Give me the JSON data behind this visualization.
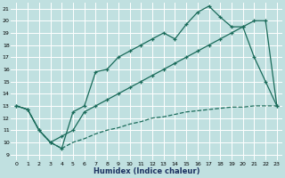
{
  "xlabel": "Humidex (Indice chaleur)",
  "bg_color": "#c0e0e0",
  "line_color": "#1a6b5a",
  "xlim": [
    -0.5,
    23.5
  ],
  "ylim": [
    8.5,
    21.5
  ],
  "xticks": [
    0,
    1,
    2,
    3,
    4,
    5,
    6,
    7,
    8,
    9,
    10,
    11,
    12,
    13,
    14,
    15,
    16,
    17,
    18,
    19,
    20,
    21,
    22,
    23
  ],
  "yticks": [
    9,
    10,
    11,
    12,
    13,
    14,
    15,
    16,
    17,
    18,
    19,
    20,
    21
  ],
  "top_x": [
    0,
    1,
    2,
    3,
    4,
    5,
    6,
    7,
    8,
    9,
    10,
    11,
    12,
    13,
    14,
    15,
    16,
    17,
    18,
    19,
    20,
    21,
    22,
    23
  ],
  "top_y": [
    13,
    12.7,
    11,
    10,
    9.5,
    12.5,
    13,
    15.8,
    16,
    17,
    17.5,
    18,
    18.5,
    19,
    18.5,
    19.7,
    20.7,
    21.2,
    20.3,
    19.5,
    19.5,
    17,
    15,
    13
  ],
  "mid_x": [
    0,
    1,
    2,
    3,
    4,
    5,
    6,
    7,
    8,
    9,
    10,
    11,
    12,
    13,
    14,
    15,
    16,
    17,
    18,
    19,
    20,
    21,
    22,
    23
  ],
  "mid_y": [
    13,
    12.7,
    11,
    10,
    10.5,
    11,
    12.5,
    13,
    13.5,
    14,
    14.5,
    15,
    15.5,
    16,
    16.5,
    17,
    17.5,
    18,
    18.5,
    19,
    19.5,
    20,
    20,
    13
  ],
  "bot_x": [
    0,
    1,
    2,
    3,
    4,
    5,
    6,
    7,
    8,
    9,
    10,
    11,
    12,
    13,
    14,
    15,
    16,
    17,
    18,
    19,
    20,
    21,
    22,
    23
  ],
  "bot_y": [
    13,
    12.7,
    11,
    10,
    9.5,
    10,
    10.3,
    10.7,
    11,
    11.2,
    11.5,
    11.7,
    12,
    12.1,
    12.3,
    12.5,
    12.6,
    12.7,
    12.8,
    12.9,
    12.9,
    13,
    13,
    13
  ]
}
